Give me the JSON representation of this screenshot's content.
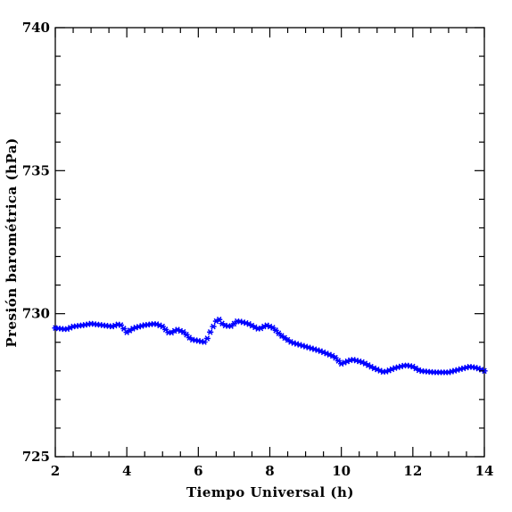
{
  "chart_data": {
    "type": "scatter",
    "title": "",
    "xlabel": "Tiempo Universal (h)",
    "ylabel": "Presión barométrica (hPa)",
    "xlim": [
      2,
      14
    ],
    "ylim": [
      725,
      740
    ],
    "x_ticks": [
      2,
      4,
      6,
      8,
      10,
      12,
      14
    ],
    "x_tick_labels": [
      "2",
      "4",
      "6",
      "8",
      "10",
      "12",
      "14"
    ],
    "y_ticks": [
      725,
      730,
      735,
      740
    ],
    "y_tick_labels": [
      "725",
      "730",
      "735",
      "740"
    ],
    "grid": false,
    "legend": "none",
    "marker": "asterisk",
    "colors": {
      "series": "#0000ff",
      "axes": "#000000",
      "background": "#ffffff"
    },
    "keyframes": [
      [
        2.0,
        729.5
      ],
      [
        2.3,
        729.45
      ],
      [
        2.5,
        729.55
      ],
      [
        2.8,
        729.6
      ],
      [
        3.0,
        729.65
      ],
      [
        3.3,
        729.6
      ],
      [
        3.6,
        729.55
      ],
      [
        3.8,
        729.65
      ],
      [
        4.0,
        729.35
      ],
      [
        4.2,
        729.5
      ],
      [
        4.5,
        729.6
      ],
      [
        4.8,
        729.65
      ],
      [
        5.0,
        729.55
      ],
      [
        5.2,
        729.3
      ],
      [
        5.4,
        729.45
      ],
      [
        5.6,
        729.35
      ],
      [
        5.8,
        729.1
      ],
      [
        6.0,
        729.05
      ],
      [
        6.2,
        729.0
      ],
      [
        6.35,
        729.4
      ],
      [
        6.55,
        729.85
      ],
      [
        6.7,
        729.6
      ],
      [
        6.9,
        729.55
      ],
      [
        7.1,
        729.75
      ],
      [
        7.4,
        729.65
      ],
      [
        7.7,
        729.45
      ],
      [
        7.9,
        729.6
      ],
      [
        8.1,
        729.5
      ],
      [
        8.3,
        729.25
      ],
      [
        8.6,
        729.0
      ],
      [
        9.0,
        728.85
      ],
      [
        9.4,
        728.7
      ],
      [
        9.8,
        728.5
      ],
      [
        10.0,
        728.25
      ],
      [
        10.3,
        728.4
      ],
      [
        10.6,
        728.3
      ],
      [
        10.9,
        728.1
      ],
      [
        11.2,
        727.95
      ],
      [
        11.5,
        728.1
      ],
      [
        11.8,
        728.2
      ],
      [
        12.0,
        728.15
      ],
      [
        12.2,
        728.0
      ],
      [
        12.6,
        727.95
      ],
      [
        13.0,
        727.95
      ],
      [
        13.3,
        728.05
      ],
      [
        13.6,
        728.15
      ],
      [
        13.8,
        728.1
      ],
      [
        14.0,
        728.0
      ]
    ]
  }
}
